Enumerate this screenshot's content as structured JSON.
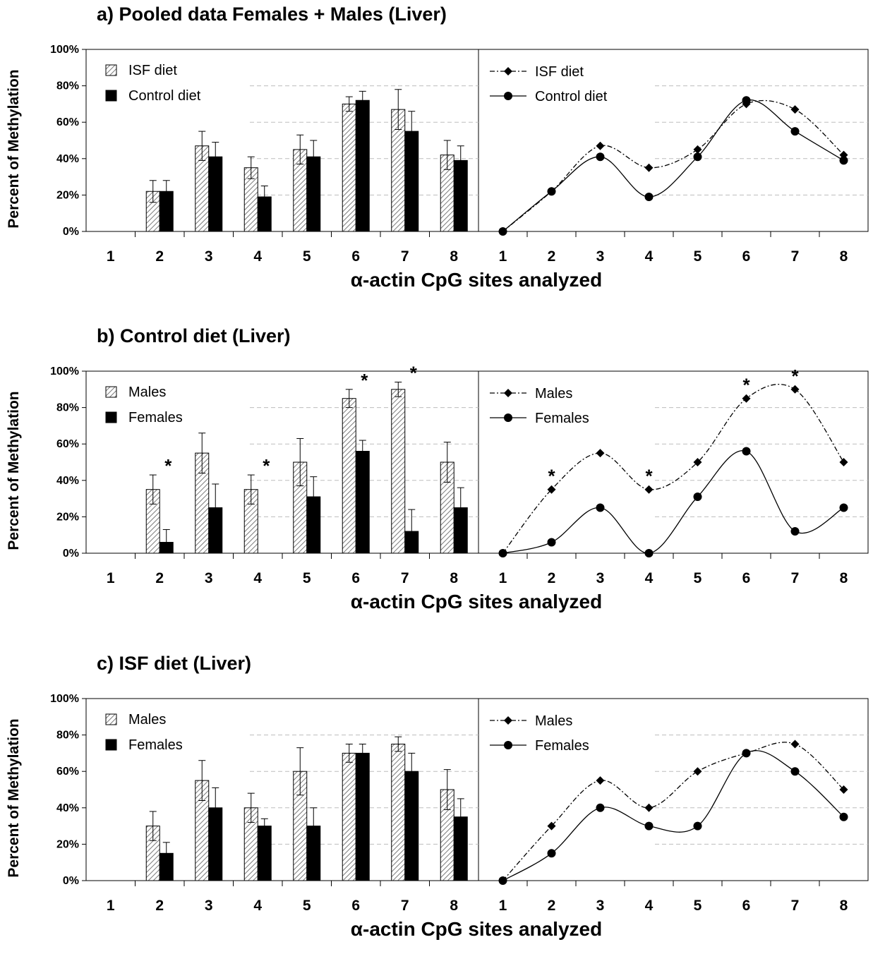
{
  "xlabel": "α-actin CpG sites analyzed",
  "ylabel": "Percent of Methylation",
  "colors": {
    "series1": "#000000",
    "series2": "#000000",
    "grid": "#bdbdbd"
  },
  "chart_data": [
    {
      "id": "a",
      "type": "bar",
      "title": "a) Pooled data Females + Males (Liver)",
      "categories": [
        "1",
        "2",
        "3",
        "4",
        "5",
        "6",
        "7",
        "8"
      ],
      "ylim": [
        0,
        100
      ],
      "yticks": [
        "0%",
        "20%",
        "40%",
        "60%",
        "80%",
        "100%"
      ],
      "legend_position": "top-left",
      "series": [
        {
          "name": "ISF diet",
          "style": "hatched",
          "values": [
            0,
            22,
            47,
            35,
            45,
            70,
            67,
            42
          ],
          "errors": [
            0,
            6,
            8,
            6,
            8,
            4,
            11,
            8
          ]
        },
        {
          "name": "Control diet",
          "style": "solid",
          "values": [
            0,
            22,
            41,
            19,
            41,
            72,
            55,
            39
          ],
          "errors": [
            0,
            6,
            8,
            6,
            9,
            5,
            11,
            8
          ]
        }
      ],
      "line_chart": {
        "type": "line",
        "legend_position": "top-left",
        "series": [
          {
            "name": "ISF diet",
            "marker": "diamond",
            "dash": "dash-dot",
            "values": [
              0,
              22,
              47,
              35,
              45,
              70,
              67,
              42
            ]
          },
          {
            "name": "Control diet",
            "marker": "circle",
            "dash": "solid",
            "values": [
              0,
              22,
              41,
              19,
              41,
              72,
              55,
              39
            ]
          }
        ]
      },
      "significance_sites": []
    },
    {
      "id": "b",
      "type": "bar",
      "title": "b) Control diet (Liver)",
      "categories": [
        "1",
        "2",
        "3",
        "4",
        "5",
        "6",
        "7",
        "8"
      ],
      "ylim": [
        0,
        100
      ],
      "yticks": [
        "0%",
        "20%",
        "40%",
        "60%",
        "80%",
        "100%"
      ],
      "legend_position": "top-left",
      "series": [
        {
          "name": "Males",
          "style": "hatched",
          "values": [
            0,
            35,
            55,
            35,
            50,
            85,
            90,
            50
          ],
          "errors": [
            0,
            8,
            11,
            8,
            13,
            5,
            4,
            11
          ]
        },
        {
          "name": "Females",
          "style": "solid",
          "values": [
            0,
            6,
            25,
            0,
            31,
            56,
            12,
            25
          ],
          "errors": [
            0,
            7,
            13,
            0,
            11,
            6,
            12,
            11
          ]
        }
      ],
      "line_chart": {
        "type": "line",
        "legend_position": "top-left",
        "series": [
          {
            "name": "Males",
            "marker": "diamond",
            "dash": "dash-dot",
            "values": [
              0,
              35,
              55,
              35,
              50,
              85,
              90,
              50
            ]
          },
          {
            "name": "Females",
            "marker": "circle",
            "dash": "solid",
            "values": [
              0,
              6,
              25,
              0,
              31,
              56,
              12,
              25
            ]
          }
        ]
      },
      "significance_sites": [
        "2",
        "4",
        "6",
        "7"
      ],
      "significance_mark": "*"
    },
    {
      "id": "c",
      "type": "bar",
      "title": "c) ISF diet (Liver)",
      "categories": [
        "1",
        "2",
        "3",
        "4",
        "5",
        "6",
        "7",
        "8"
      ],
      "ylim": [
        0,
        100
      ],
      "yticks": [
        "0%",
        "20%",
        "40%",
        "60%",
        "80%",
        "100%"
      ],
      "legend_position": "top-left",
      "series": [
        {
          "name": "Males",
          "style": "hatched",
          "values": [
            0,
            30,
            55,
            40,
            60,
            70,
            75,
            50
          ],
          "errors": [
            0,
            8,
            11,
            8,
            13,
            5,
            4,
            11
          ]
        },
        {
          "name": "Females",
          "style": "solid",
          "values": [
            0,
            15,
            40,
            30,
            30,
            70,
            60,
            35
          ],
          "errors": [
            0,
            6,
            11,
            4,
            10,
            5,
            10,
            10
          ]
        }
      ],
      "line_chart": {
        "type": "line",
        "legend_position": "top-left",
        "series": [
          {
            "name": "Males",
            "marker": "diamond",
            "dash": "dash-dot",
            "values": [
              0,
              30,
              55,
              40,
              60,
              70,
              75,
              50
            ]
          },
          {
            "name": "Females",
            "marker": "circle",
            "dash": "solid",
            "values": [
              0,
              15,
              40,
              30,
              30,
              70,
              60,
              35
            ]
          }
        ]
      },
      "significance_sites": []
    }
  ]
}
